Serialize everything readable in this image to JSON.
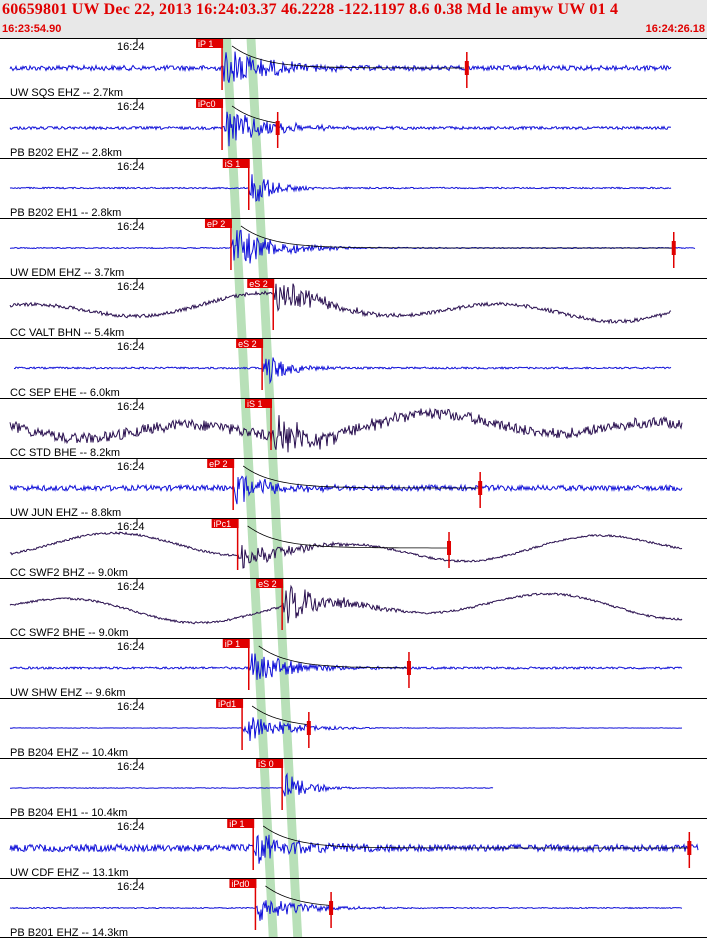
{
  "header": {
    "title": "60659801 UW Dec 22, 2013 16:24:03.37   46.2228 -122.1197  8.6 0.38 Md le amyw UW 01   4",
    "time_start": "16:23:54.90",
    "time_end": "16:24:26.18"
  },
  "colors": {
    "trace_blue": "#1010d8",
    "trace_dark": "#2a1050",
    "pick_red": "#e00000",
    "window_green": "#b8e0b8",
    "header_bg": "#e8e8e8"
  },
  "chart_data": {
    "type": "line",
    "x_unit": "seconds",
    "x_range": [
      0,
      31.28
    ],
    "tick_label": "16:24",
    "grid": false,
    "channels": [
      {
        "label": "UW SQS EHZ -- 2.7km",
        "color": "blue",
        "pick": "iP 1",
        "onset": 9.8,
        "amp": 0.95,
        "noise": 0.14,
        "type": "local",
        "coda_end": 30.0,
        "s_pick": 20.8
      },
      {
        "label": "PB B202 EHZ -- 2.8km",
        "color": "blue",
        "pick": "iPc0",
        "onset": 9.8,
        "amp": 0.85,
        "noise": 0.08,
        "type": "local",
        "coda_end": 30.0,
        "s_pick": 12.3
      },
      {
        "label": "PB B202 EH1 -- 2.8km",
        "color": "blue",
        "pick": "iS 1",
        "onset": 11.0,
        "amp": 0.85,
        "noise": 0.04,
        "type": "burst",
        "coda_end": 30.0
      },
      {
        "label": "UW EDM EHZ -- 3.7km",
        "color": "blue",
        "pick": "eP 2",
        "onset": 10.2,
        "amp": 0.9,
        "noise": 0.03,
        "type": "local",
        "coda_end": 31.1,
        "s_pick": 30.1
      },
      {
        "label": "CC VALT BHN -- 5.4km",
        "color": "dark",
        "pick": "eS 2",
        "onset": 12.1,
        "amp": 0.7,
        "noise": 0.1,
        "type": "wave",
        "coda_end": 30.0
      },
      {
        "label": "CC SEP EHE -- 6.0km",
        "color": "blue",
        "pick": "eS 2",
        "onset": 11.6,
        "amp": 0.8,
        "noise": 0.05,
        "type": "burst",
        "coda_end": 30.0
      },
      {
        "label": "CC STD BHE -- 8.2km",
        "color": "dark",
        "pick": "iS 1",
        "onset": 12.0,
        "amp": 0.9,
        "noise": 0.3,
        "type": "wave",
        "coda_end": 30.5
      },
      {
        "label": "UW JUN EHZ -- 8.8km",
        "color": "blue",
        "pick": "eP 2",
        "onset": 10.3,
        "amp": 0.6,
        "noise": 0.15,
        "type": "local",
        "coda_end": 30.5,
        "s_pick": 21.4
      },
      {
        "label": "CC SWF2 BHZ -- 9.0km",
        "color": "dark",
        "pick": "iPc1",
        "onset": 10.5,
        "amp": 0.6,
        "noise": 0.06,
        "type": "wave",
        "coda_end": 30.5,
        "s_pick": 20.0
      },
      {
        "label": "CC SWF2 BHE -- 9.0km",
        "color": "dark",
        "pick": "eS 2",
        "onset": 12.5,
        "amp": 0.85,
        "noise": 0.06,
        "type": "wave",
        "coda_end": 30.5
      },
      {
        "label": "UW SHW EHZ -- 9.6km",
        "color": "blue",
        "pick": "iP 1",
        "onset": 11.0,
        "amp": 0.7,
        "noise": 0.06,
        "type": "local",
        "coda_end": 30.5,
        "s_pick": 18.2
      },
      {
        "label": "PB B204 EHZ -- 10.4km",
        "color": "blue",
        "pick": "iPd1",
        "onset": 10.7,
        "amp": 0.6,
        "noise": 0.01,
        "type": "local",
        "coda_end": 30.5,
        "s_pick": 13.7
      },
      {
        "label": "PB B204 EH1 -- 10.4km",
        "color": "blue",
        "pick": "iS 0",
        "onset": 12.5,
        "amp": 0.7,
        "noise": 0.02,
        "type": "burst",
        "coda_end": 22.0
      },
      {
        "label": "UW CDF EHZ -- 13.1km",
        "color": "blue",
        "pick": "iP 1",
        "onset": 11.2,
        "amp": 0.65,
        "noise": 0.2,
        "type": "local",
        "coda_end": 31.2,
        "s_pick": 30.8
      },
      {
        "label": "PB B201 EHZ -- 14.3km",
        "color": "blue",
        "pick": "iPd0",
        "onset": 11.3,
        "amp": 0.55,
        "noise": 0.03,
        "type": "local",
        "coda_end": 30.5,
        "s_pick": 14.7
      }
    ],
    "windows": [
      {
        "start": 9.8,
        "end": 10.2,
        "rows": [
          0,
          15
        ]
      },
      {
        "start": 10.9,
        "end": 11.3,
        "rows": [
          0,
          15
        ]
      }
    ]
  }
}
